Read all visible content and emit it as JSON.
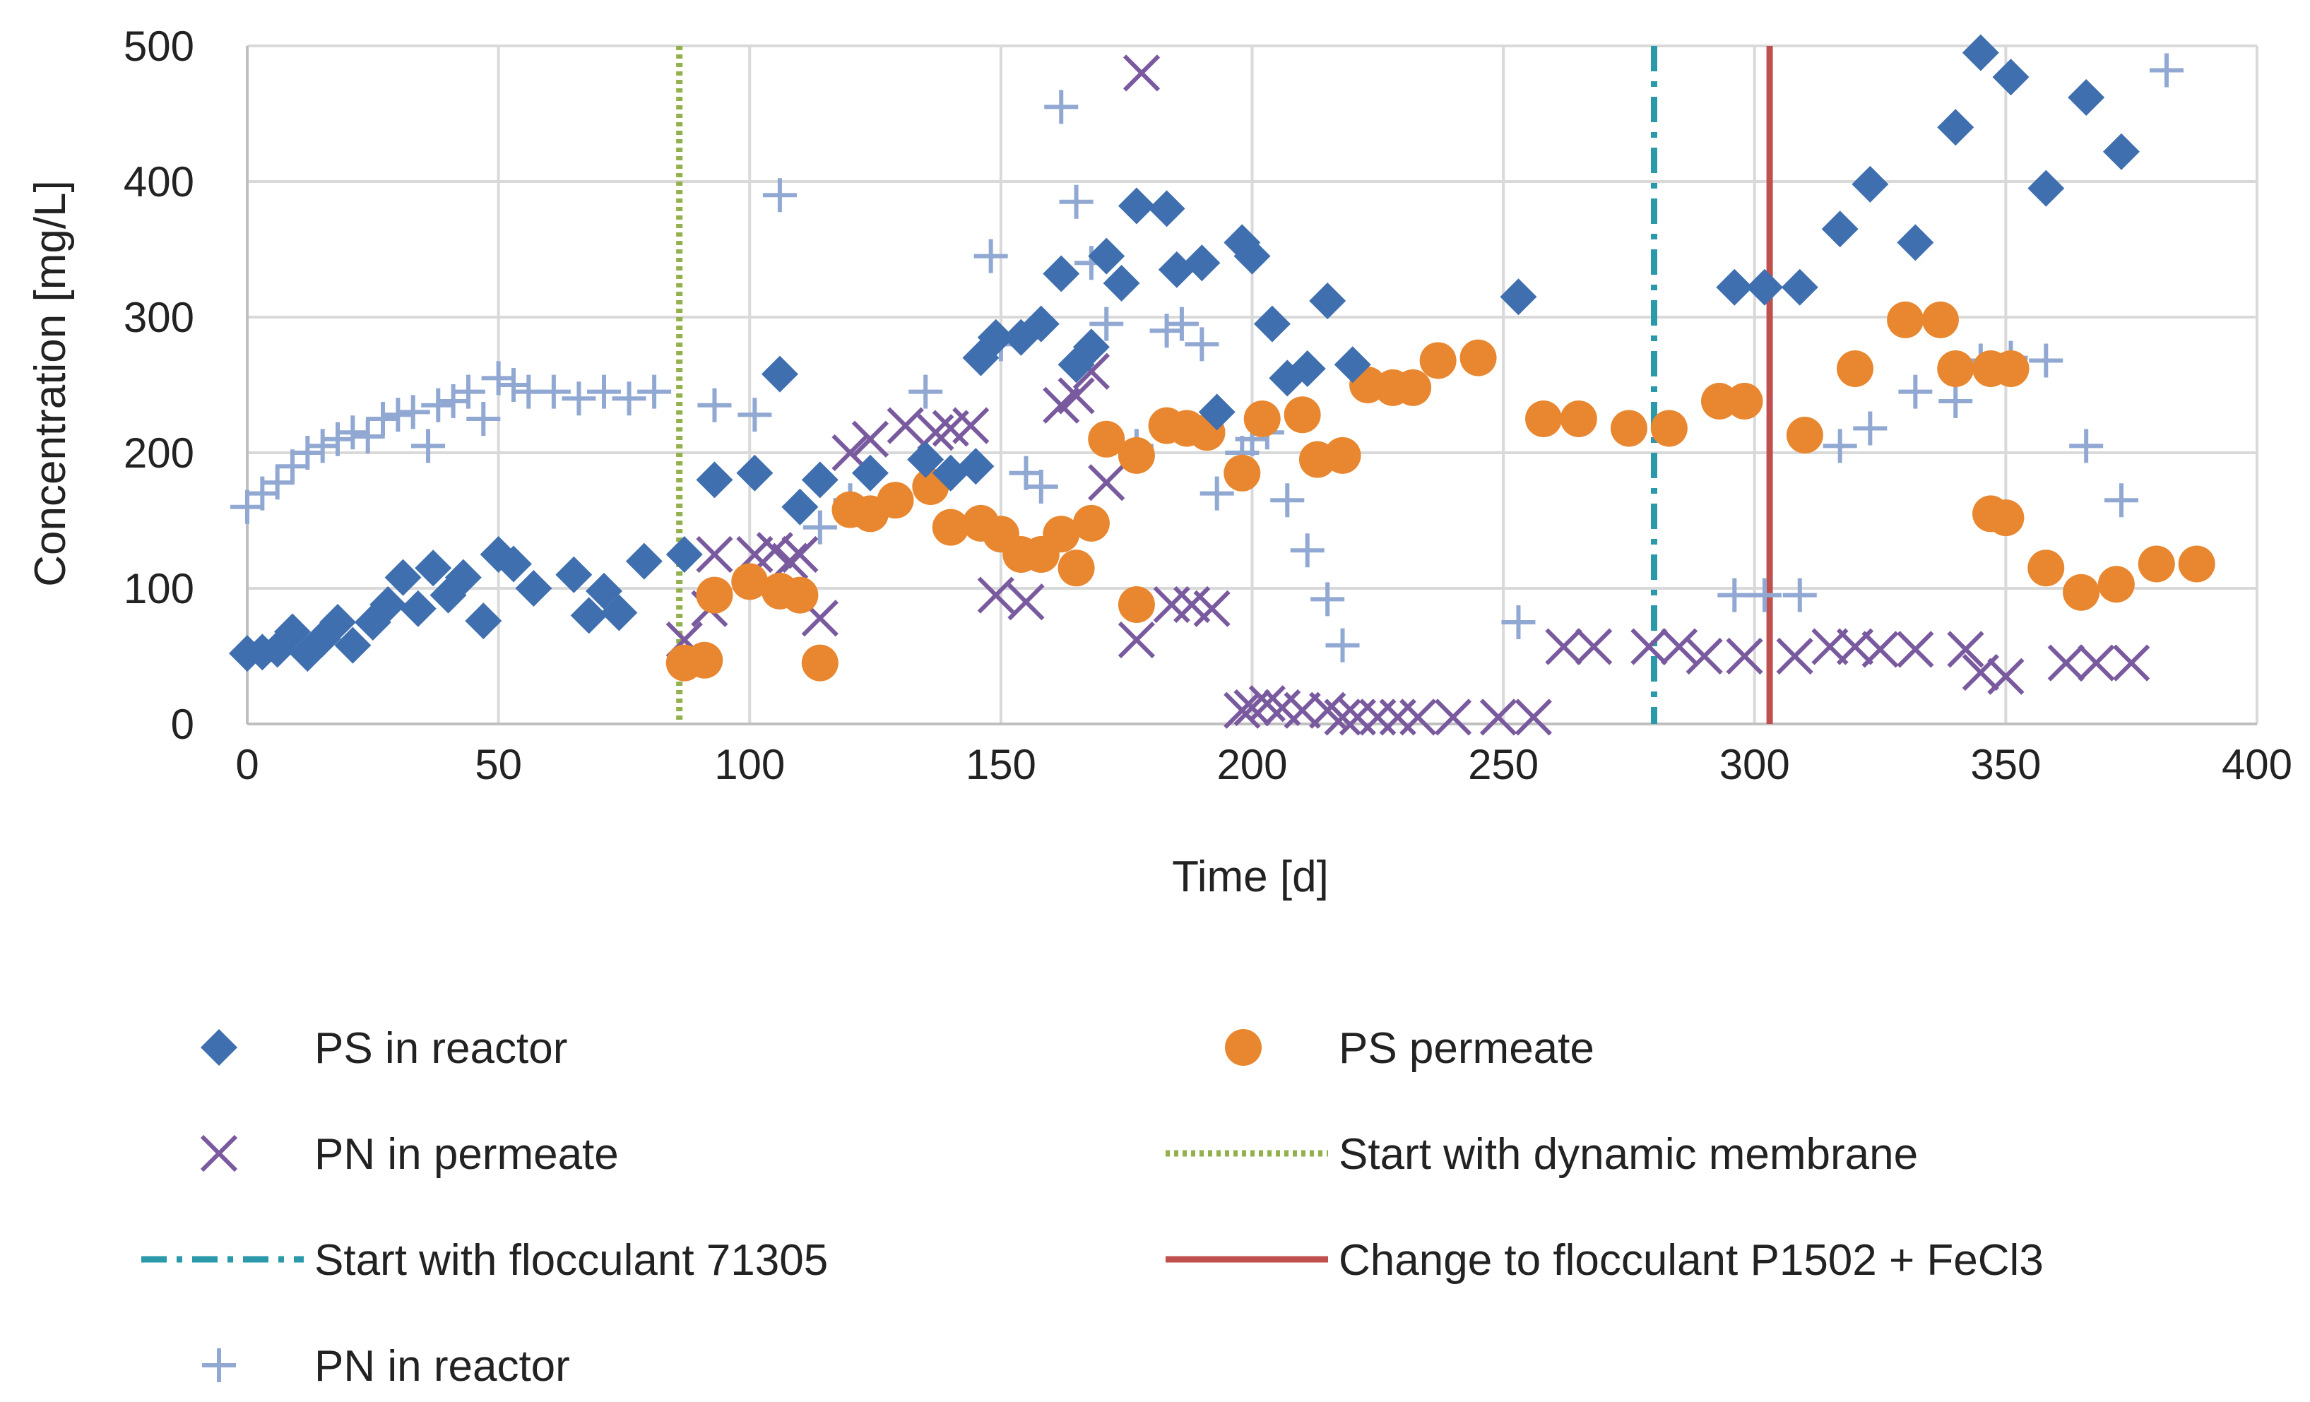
{
  "chart_data": {
    "type": "scatter",
    "title": "",
    "xlabel": "Time [d]",
    "ylabel": "Concentration [mg/L]",
    "xlim": [
      0,
      400
    ],
    "ylim": [
      0,
      500
    ],
    "xticks": [
      "0",
      "50",
      "100",
      "150",
      "200",
      "250",
      "300",
      "350",
      "400"
    ],
    "yticks": [
      "0",
      "100",
      "200",
      "300",
      "400",
      "500"
    ],
    "grid": true,
    "legend_position": "bottom",
    "series": [
      {
        "name": "PS in reactor",
        "marker": "diamond",
        "color": "#3f6faf",
        "points": [
          [
            0,
            52
          ],
          [
            3,
            53
          ],
          [
            6,
            55
          ],
          [
            9,
            68
          ],
          [
            12,
            52
          ],
          [
            15,
            63
          ],
          [
            18,
            75
          ],
          [
            21,
            58
          ],
          [
            25,
            75
          ],
          [
            28,
            88
          ],
          [
            31,
            108
          ],
          [
            34,
            85
          ],
          [
            37,
            115
          ],
          [
            40,
            95
          ],
          [
            43,
            108
          ],
          [
            47,
            76
          ],
          [
            50,
            125
          ],
          [
            53,
            118
          ],
          [
            57,
            100
          ],
          [
            65,
            110
          ],
          [
            68,
            80
          ],
          [
            71,
            98
          ],
          [
            74,
            82
          ],
          [
            79,
            120
          ],
          [
            87,
            125
          ],
          [
            93,
            180
          ],
          [
            101,
            185
          ],
          [
            106,
            258
          ],
          [
            110,
            160
          ],
          [
            114,
            180
          ],
          [
            124,
            185
          ],
          [
            135,
            195
          ],
          [
            140,
            185
          ],
          [
            145,
            190
          ],
          [
            146,
            270
          ],
          [
            149,
            285
          ],
          [
            154,
            285
          ],
          [
            158,
            295
          ],
          [
            162,
            332
          ],
          [
            165,
            265
          ],
          [
            168,
            278
          ],
          [
            171,
            345
          ],
          [
            174,
            325
          ],
          [
            177,
            382
          ],
          [
            183,
            380
          ],
          [
            185,
            335
          ],
          [
            190,
            340
          ],
          [
            193,
            230
          ],
          [
            198,
            355
          ],
          [
            200,
            345
          ],
          [
            204,
            295
          ],
          [
            207,
            255
          ],
          [
            211,
            262
          ],
          [
            215,
            312
          ],
          [
            220,
            265
          ],
          [
            253,
            315
          ],
          [
            296,
            322
          ],
          [
            302,
            322
          ],
          [
            309,
            322
          ],
          [
            317,
            365
          ],
          [
            323,
            398
          ],
          [
            332,
            355
          ],
          [
            340,
            440
          ],
          [
            345,
            495
          ],
          [
            351,
            477
          ],
          [
            358,
            395
          ],
          [
            366,
            462
          ],
          [
            373,
            422
          ]
        ]
      },
      {
        "name": "PS permeate",
        "marker": "circle",
        "color": "#e8872f",
        "points": [
          [
            87,
            45
          ],
          [
            91,
            47
          ],
          [
            93,
            95
          ],
          [
            100,
            105
          ],
          [
            106,
            98
          ],
          [
            110,
            95
          ],
          [
            114,
            45
          ],
          [
            120,
            158
          ],
          [
            124,
            155
          ],
          [
            129,
            165
          ],
          [
            136,
            175
          ],
          [
            140,
            145
          ],
          [
            146,
            148
          ],
          [
            150,
            140
          ],
          [
            154,
            125
          ],
          [
            158,
            125
          ],
          [
            162,
            140
          ],
          [
            165,
            115
          ],
          [
            168,
            148
          ],
          [
            171,
            210
          ],
          [
            177,
            198
          ],
          [
            177,
            88
          ],
          [
            183,
            220
          ],
          [
            187,
            218
          ],
          [
            191,
            215
          ],
          [
            198,
            185
          ],
          [
            202,
            225
          ],
          [
            210,
            228
          ],
          [
            213,
            195
          ],
          [
            218,
            198
          ],
          [
            223,
            250
          ],
          [
            228,
            248
          ],
          [
            232,
            248
          ],
          [
            237,
            268
          ],
          [
            245,
            270
          ],
          [
            258,
            225
          ],
          [
            265,
            225
          ],
          [
            275,
            218
          ],
          [
            283,
            218
          ],
          [
            293,
            238
          ],
          [
            298,
            238
          ],
          [
            310,
            213
          ],
          [
            320,
            262
          ],
          [
            330,
            298
          ],
          [
            337,
            298
          ],
          [
            340,
            262
          ],
          [
            347,
            262
          ],
          [
            351,
            262
          ],
          [
            347,
            155
          ],
          [
            350,
            152
          ],
          [
            358,
            115
          ],
          [
            365,
            97
          ],
          [
            372,
            103
          ],
          [
            380,
            118
          ],
          [
            388,
            118
          ]
        ]
      },
      {
        "name": "PN in permeate",
        "marker": "x",
        "color": "#7a5a9e",
        "points": [
          [
            87,
            62
          ],
          [
            92,
            85
          ],
          [
            93,
            125
          ],
          [
            101,
            125
          ],
          [
            105,
            128
          ],
          [
            108,
            120
          ],
          [
            110,
            125
          ],
          [
            114,
            78
          ],
          [
            120,
            200
          ],
          [
            124,
            210
          ],
          [
            131,
            220
          ],
          [
            137,
            215
          ],
          [
            140,
            218
          ],
          [
            144,
            220
          ],
          [
            149,
            95
          ],
          [
            155,
            90
          ],
          [
            162,
            235
          ],
          [
            165,
            242
          ],
          [
            168,
            260
          ],
          [
            171,
            178
          ],
          [
            177,
            62
          ],
          [
            178,
            480
          ],
          [
            184,
            88
          ],
          [
            188,
            88
          ],
          [
            192,
            85
          ],
          [
            198,
            10
          ],
          [
            200,
            12
          ],
          [
            203,
            15
          ],
          [
            206,
            12
          ],
          [
            210,
            10
          ],
          [
            215,
            10
          ],
          [
            218,
            5
          ],
          [
            221,
            5
          ],
          [
            225,
            5
          ],
          [
            229,
            5
          ],
          [
            233,
            5
          ],
          [
            240,
            5
          ],
          [
            249,
            5
          ],
          [
            256,
            5
          ],
          [
            262,
            57
          ],
          [
            268,
            57
          ],
          [
            279,
            57
          ],
          [
            285,
            57
          ],
          [
            290,
            50
          ],
          [
            298,
            50
          ],
          [
            308,
            50
          ],
          [
            315,
            57
          ],
          [
            320,
            57
          ],
          [
            325,
            55
          ],
          [
            332,
            55
          ],
          [
            342,
            55
          ],
          [
            345,
            38
          ],
          [
            350,
            35
          ],
          [
            362,
            45
          ],
          [
            368,
            45
          ],
          [
            375,
            45
          ]
        ]
      },
      {
        "name": "PN in reactor",
        "marker": "plus",
        "color": "#90a8d2",
        "points": [
          [
            0,
            160
          ],
          [
            3,
            170
          ],
          [
            6,
            178
          ],
          [
            9,
            190
          ],
          [
            12,
            200
          ],
          [
            15,
            205
          ],
          [
            18,
            210
          ],
          [
            21,
            215
          ],
          [
            24,
            212
          ],
          [
            27,
            225
          ],
          [
            30,
            228
          ],
          [
            33,
            230
          ],
          [
            36,
            205
          ],
          [
            38,
            235
          ],
          [
            41,
            238
          ],
          [
            44,
            245
          ],
          [
            47,
            225
          ],
          [
            50,
            255
          ],
          [
            53,
            250
          ],
          [
            56,
            245
          ],
          [
            61,
            245
          ],
          [
            66,
            240
          ],
          [
            71,
            245
          ],
          [
            76,
            240
          ],
          [
            81,
            245
          ],
          [
            93,
            235
          ],
          [
            101,
            228
          ],
          [
            106,
            390
          ],
          [
            110,
            160
          ],
          [
            114,
            145
          ],
          [
            120,
            165
          ],
          [
            124,
            155
          ],
          [
            135,
            245
          ],
          [
            140,
            185
          ],
          [
            148,
            345
          ],
          [
            150,
            280
          ],
          [
            155,
            185
          ],
          [
            158,
            175
          ],
          [
            162,
            455
          ],
          [
            165,
            385
          ],
          [
            168,
            340
          ],
          [
            171,
            295
          ],
          [
            177,
            205
          ],
          [
            183,
            290
          ],
          [
            186,
            295
          ],
          [
            190,
            280
          ],
          [
            193,
            170
          ],
          [
            198,
            200
          ],
          [
            200,
            210
          ],
          [
            203,
            215
          ],
          [
            207,
            165
          ],
          [
            211,
            128
          ],
          [
            215,
            92
          ],
          [
            218,
            58
          ],
          [
            253,
            75
          ],
          [
            296,
            95
          ],
          [
            302,
            95
          ],
          [
            309,
            95
          ],
          [
            317,
            205
          ],
          [
            323,
            218
          ],
          [
            332,
            245
          ],
          [
            340,
            238
          ],
          [
            345,
            268
          ],
          [
            351,
            270
          ],
          [
            358,
            268
          ],
          [
            366,
            205
          ],
          [
            373,
            165
          ],
          [
            382,
            482
          ]
        ]
      }
    ],
    "vertical_lines": [
      {
        "name": "Start with dynamic membrane",
        "x": 86,
        "style": "dotted",
        "color": "#92b04b"
      },
      {
        "name": "Start with flocculant 71305",
        "x": 280,
        "style": "dashdot",
        "color": "#2a9aaa"
      },
      {
        "name": "Change to flocculant P1502 + FeCl3",
        "x": 303,
        "style": "solid",
        "color": "#c0504d"
      }
    ]
  }
}
